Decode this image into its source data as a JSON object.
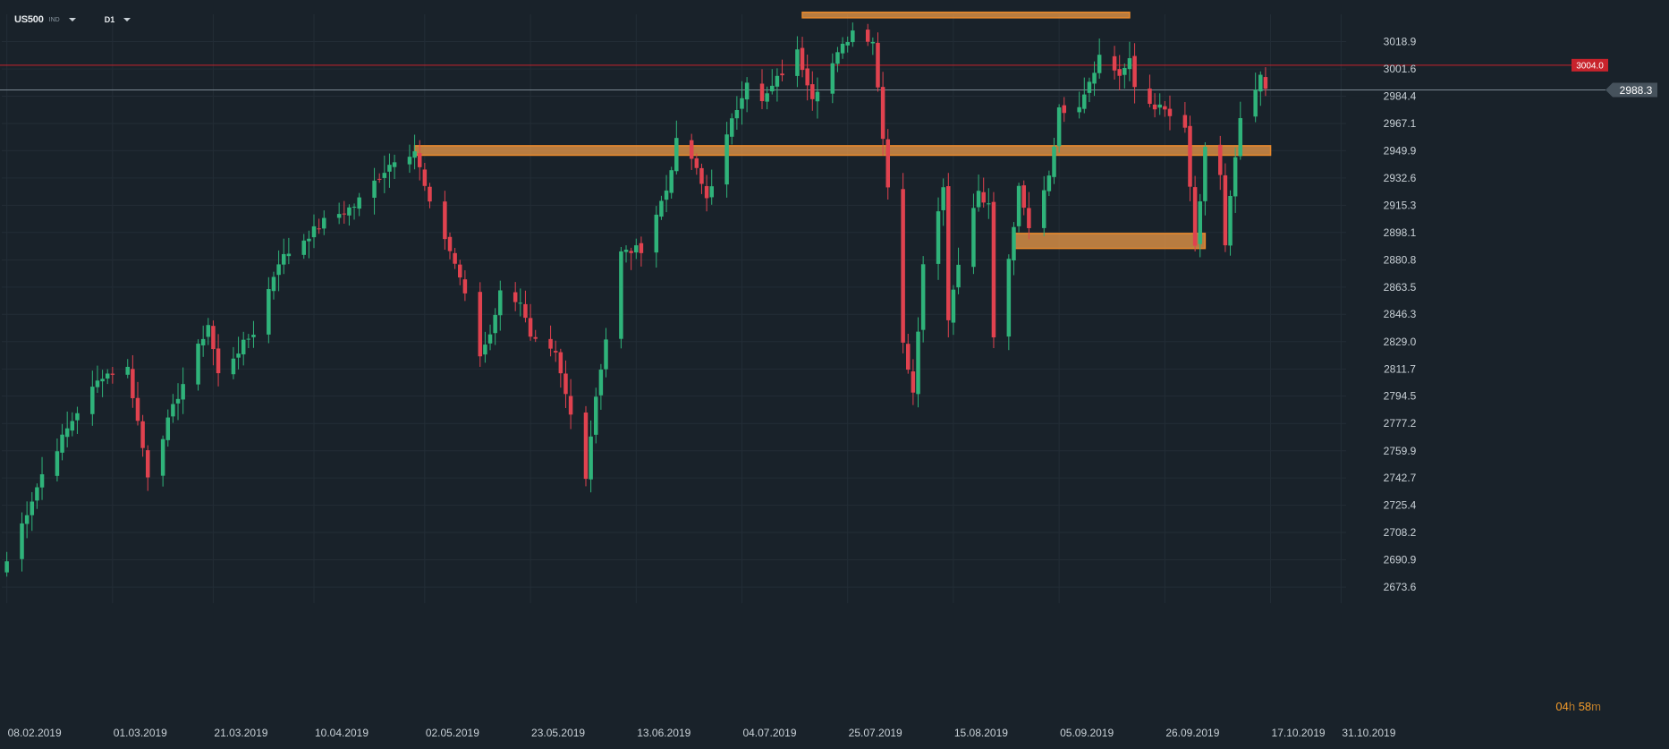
{
  "header": {
    "symbol": "US500",
    "badge": "IND",
    "timeframe": "D1"
  },
  "countdown": {
    "hours": "04",
    "h_unit": "h",
    "minutes": "58",
    "m_unit": "m"
  },
  "colors": {
    "background": "#19222a",
    "grid": "#232d36",
    "up": "#2fb37a",
    "down": "#e0424f",
    "zone_fill": "#f5a04a",
    "zone_border": "#e8892c",
    "alert_line": "#c8232c",
    "price_line": "#7a8791",
    "axis_text": "#c9d1d7"
  },
  "chart_data": {
    "type": "candlestick",
    "title": "",
    "xlabel": "",
    "ylabel": "",
    "ylim": [
      2664.6,
      3036.2
    ],
    "x_range": [
      "2019-02-07",
      "2019-11-01"
    ],
    "y_ticks": [
      "2673.6",
      "2690.9",
      "2708.2",
      "2725.4",
      "2742.7",
      "2759.9",
      "2777.2",
      "2794.5",
      "2811.7",
      "2829.0",
      "2846.3",
      "2863.5",
      "2880.8",
      "2898.1",
      "2915.3",
      "2932.6",
      "2949.9",
      "2967.1",
      "2984.4",
      "3001.6",
      "3018.9"
    ],
    "x_ticks": [
      {
        "date": "2019-02-08",
        "label": "08.02.2019"
      },
      {
        "date": "2019-03-01",
        "label": "01.03.2019"
      },
      {
        "date": "2019-03-21",
        "label": "21.03.2019"
      },
      {
        "date": "2019-04-10",
        "label": "10.04.2019"
      },
      {
        "date": "2019-05-02",
        "label": "02.05.2019"
      },
      {
        "date": "2019-05-23",
        "label": "23.05.2019"
      },
      {
        "date": "2019-06-13",
        "label": "13.06.2019"
      },
      {
        "date": "2019-07-04",
        "label": "04.07.2019"
      },
      {
        "date": "2019-07-25",
        "label": "25.07.2019"
      },
      {
        "date": "2019-08-15",
        "label": "15.08.2019"
      },
      {
        "date": "2019-09-05",
        "label": "05.09.2019"
      },
      {
        "date": "2019-09-26",
        "label": "26.09.2019"
      },
      {
        "date": "2019-10-17",
        "label": "17.10.2019"
      },
      {
        "date": "2019-10-31",
        "label": "31.10.2019"
      }
    ],
    "price_alert": {
      "value": 3004.0,
      "label": "3004.0"
    },
    "current_price": {
      "value": 2988.3,
      "label": "2988.3"
    },
    "zones": [
      {
        "x_start": "2019-07-16",
        "x_end": "2019-09-19",
        "y_low": 3034.0,
        "y_high": 3037.5
      },
      {
        "x_start": "2019-04-30",
        "x_end": "2019-10-17",
        "y_low": 2947.0,
        "y_high": 2953.0
      },
      {
        "x_start": "2019-08-27",
        "x_end": "2019-10-04",
        "y_low": 2888.0,
        "y_high": 2897.5
      }
    ],
    "pivots": [
      {
        "date": "2019-02-08",
        "price": 2690
      },
      {
        "date": "2019-02-15",
        "price": 2745
      },
      {
        "date": "2019-02-22",
        "price": 2785
      },
      {
        "date": "2019-02-27",
        "price": 2808
      },
      {
        "date": "2019-03-04",
        "price": 2812
      },
      {
        "date": "2019-03-08",
        "price": 2745
      },
      {
        "date": "2019-03-14",
        "price": 2795
      },
      {
        "date": "2019-03-20",
        "price": 2840
      },
      {
        "date": "2019-03-22",
        "price": 2808
      },
      {
        "date": "2019-03-29",
        "price": 2835
      },
      {
        "date": "2019-04-03",
        "price": 2880
      },
      {
        "date": "2019-04-12",
        "price": 2905
      },
      {
        "date": "2019-04-18",
        "price": 2915
      },
      {
        "date": "2019-04-26",
        "price": 2945
      },
      {
        "date": "2019-04-30",
        "price": 2950
      },
      {
        "date": "2019-05-03",
        "price": 2915
      },
      {
        "date": "2019-05-06",
        "price": 2895
      },
      {
        "date": "2019-05-09",
        "price": 2870
      },
      {
        "date": "2019-05-13",
        "price": 2820
      },
      {
        "date": "2019-05-15",
        "price": 2835
      },
      {
        "date": "2019-05-17",
        "price": 2860
      },
      {
        "date": "2019-05-21",
        "price": 2855
      },
      {
        "date": "2019-05-23",
        "price": 2830
      },
      {
        "date": "2019-05-28",
        "price": 2820
      },
      {
        "date": "2019-06-03",
        "price": 2745
      },
      {
        "date": "2019-06-05",
        "price": 2795
      },
      {
        "date": "2019-06-10",
        "price": 2885
      },
      {
        "date": "2019-06-14",
        "price": 2888
      },
      {
        "date": "2019-06-19",
        "price": 2925
      },
      {
        "date": "2019-06-21",
        "price": 2955
      },
      {
        "date": "2019-06-24",
        "price": 2945
      },
      {
        "date": "2019-06-27",
        "price": 2920
      },
      {
        "date": "2019-07-02",
        "price": 2968
      },
      {
        "date": "2019-07-05",
        "price": 2995
      },
      {
        "date": "2019-07-08",
        "price": 2980
      },
      {
        "date": "2019-07-11",
        "price": 2995
      },
      {
        "date": "2019-07-15",
        "price": 3012
      },
      {
        "date": "2019-07-18",
        "price": 2985
      },
      {
        "date": "2019-07-22",
        "price": 3005
      },
      {
        "date": "2019-07-26",
        "price": 3026
      },
      {
        "date": "2019-07-30",
        "price": 3020
      },
      {
        "date": "2019-08-01",
        "price": 2960
      },
      {
        "date": "2019-08-05",
        "price": 2830
      },
      {
        "date": "2019-08-07",
        "price": 2795
      },
      {
        "date": "2019-08-09",
        "price": 2880
      },
      {
        "date": "2019-08-13",
        "price": 2926
      },
      {
        "date": "2019-08-14",
        "price": 2845
      },
      {
        "date": "2019-08-16",
        "price": 2880
      },
      {
        "date": "2019-08-20",
        "price": 2925
      },
      {
        "date": "2019-08-22",
        "price": 2915
      },
      {
        "date": "2019-08-23",
        "price": 2832
      },
      {
        "date": "2019-08-26",
        "price": 2880
      },
      {
        "date": "2019-08-28",
        "price": 2925
      },
      {
        "date": "2019-08-30",
        "price": 2900
      },
      {
        "date": "2019-09-03",
        "price": 2935
      },
      {
        "date": "2019-09-05",
        "price": 2975
      },
      {
        "date": "2019-09-09",
        "price": 2980
      },
      {
        "date": "2019-09-12",
        "price": 3002
      },
      {
        "date": "2019-09-13",
        "price": 3010
      },
      {
        "date": "2019-09-17",
        "price": 2998
      },
      {
        "date": "2019-09-19",
        "price": 3006
      },
      {
        "date": "2019-09-20",
        "price": 2990
      },
      {
        "date": "2019-09-23",
        "price": 2980
      },
      {
        "date": "2019-09-26",
        "price": 2975
      },
      {
        "date": "2019-09-30",
        "price": 2962
      },
      {
        "date": "2019-10-02",
        "price": 2890
      },
      {
        "date": "2019-10-03",
        "price": 2915
      },
      {
        "date": "2019-10-04",
        "price": 2950
      },
      {
        "date": "2019-10-07",
        "price": 2935
      },
      {
        "date": "2019-10-08",
        "price": 2890
      },
      {
        "date": "2019-10-09",
        "price": 2920
      },
      {
        "date": "2019-10-11",
        "price": 2968
      },
      {
        "date": "2019-10-15",
        "price": 2995
      },
      {
        "date": "2019-10-16",
        "price": 2988.3
      }
    ]
  }
}
